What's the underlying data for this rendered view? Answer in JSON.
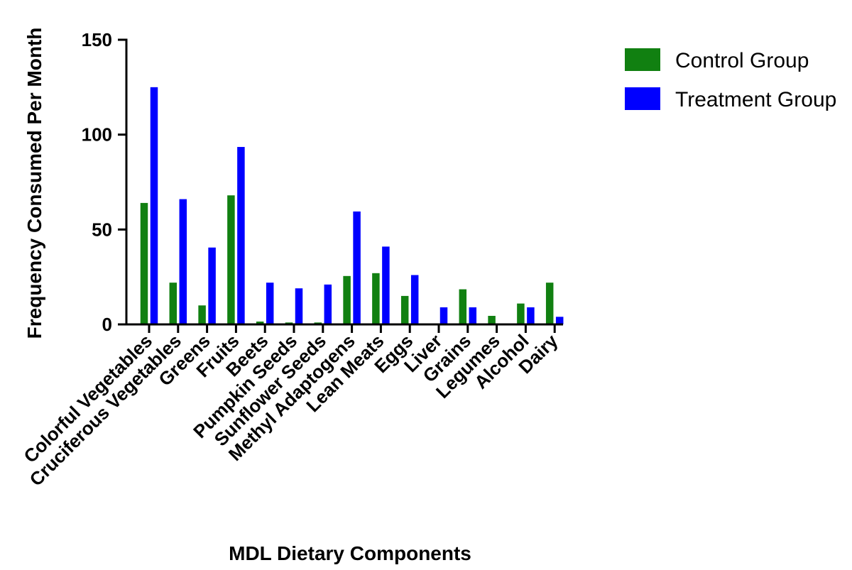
{
  "chart_data": {
    "type": "bar",
    "xlabel": "MDL Dietary Components",
    "ylabel": "Frequency Consumed Per Month",
    "ylim": [
      0,
      150
    ],
    "yticks": [
      0,
      50,
      100,
      150
    ],
    "legend_position": "top-right",
    "categories": [
      "Colorful Vegetables",
      "Cruciferous Vegetables",
      "Greens",
      "Fruits",
      "Beets",
      "Pumpkin Seeds",
      "Sunflower Seeds",
      "Methyl Adaptogens",
      "Lean Meats",
      "Eggs",
      "Liver",
      "Grains",
      "Legumes",
      "Alcohol",
      "Dairy"
    ],
    "series": [
      {
        "name": "Control Group",
        "color": "#118011",
        "values": [
          64,
          22,
          10,
          68,
          1.5,
          1,
          1,
          25.5,
          27,
          15,
          0,
          18.5,
          4.5,
          11,
          22
        ]
      },
      {
        "name": "Treatment Group",
        "color": "#0000ff",
        "values": [
          125,
          66,
          40.5,
          93.5,
          22,
          19,
          21,
          59.5,
          41,
          26,
          9,
          9,
          0,
          9,
          4
        ]
      }
    ]
  }
}
